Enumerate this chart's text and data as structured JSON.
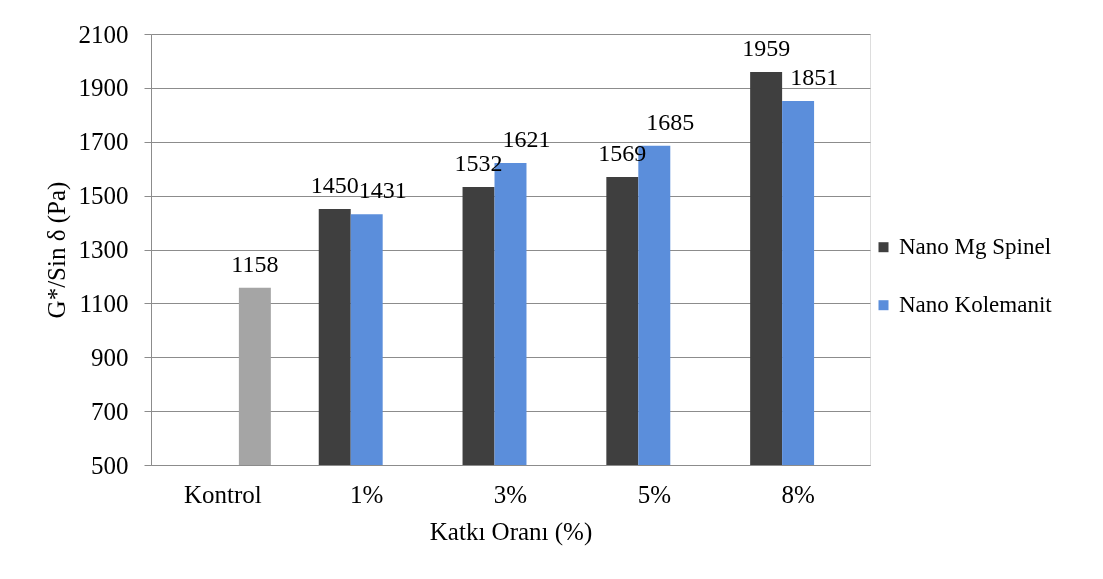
{
  "chart_data": {
    "type": "bar",
    "xlabel": "Katkı Oranı (%)",
    "ylabel": "G*/Sin δ (Pa)",
    "categories": [
      "Kontrol",
      "1%",
      "3%",
      "5%",
      "8%"
    ],
    "series": [
      {
        "name": "Nano Mg Spinel",
        "color": "#3f3f3f",
        "values": [
          null,
          1450,
          1532,
          1569,
          1959
        ]
      },
      {
        "name": "Nano Kolemanit",
        "color": "#5b8edb",
        "values": [
          null,
          1431,
          1621,
          1685,
          1851
        ]
      },
      {
        "color": "#a5a5a5",
        "values": [
          1158,
          null,
          null,
          null,
          null
        ]
      }
    ],
    "ylim": [
      500,
      2100
    ],
    "yticks": [
      500,
      700,
      900,
      1100,
      1300,
      1500,
      1700,
      1900,
      2100
    ],
    "grid": "y",
    "legend": "right",
    "data_labels": true
  }
}
